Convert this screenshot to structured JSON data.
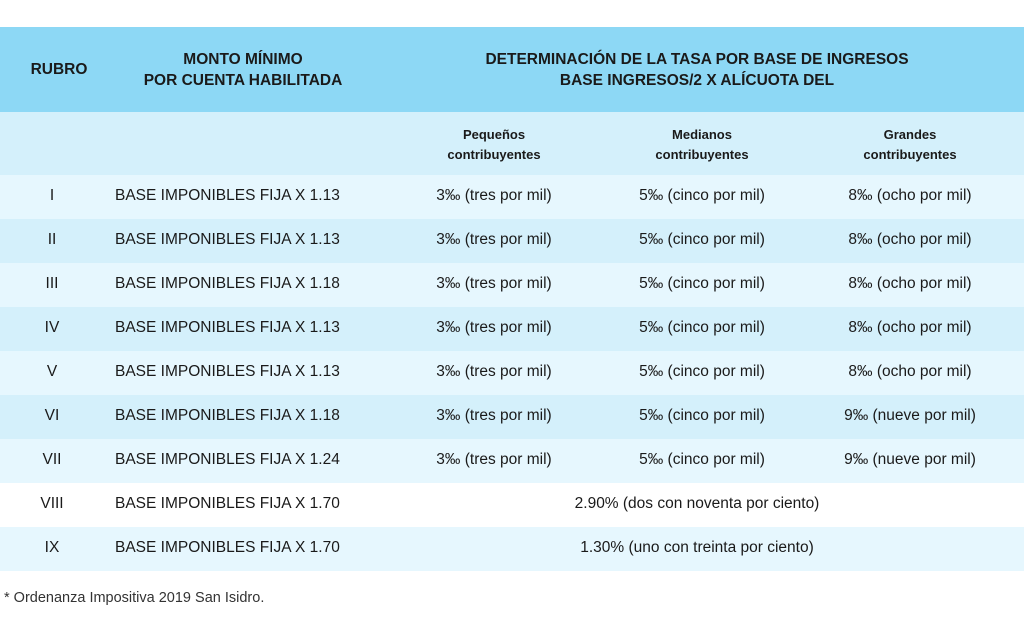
{
  "header": {
    "rubro": "RUBRO",
    "monto_line1": "MONTO MÍNIMO",
    "monto_line2": "POR CUENTA HABILITADA",
    "det_line1": "DETERMINACIÓN DE LA TASA POR BASE DE INGRESOS",
    "det_line2": "BASE INGRESOS/2 X ALÍCUOTA DEL"
  },
  "subheader": {
    "pequenos_line1": "Pequeños",
    "pequenos_line2": "contribuyentes",
    "medianos_line1": "Medianos",
    "medianos_line2": "contribuyentes",
    "grandes_line1": "Grandes",
    "grandes_line2": "contribuyentes"
  },
  "rows": [
    {
      "rubro": "I",
      "monto": "BASE IMPONIBLES FIJA X 1.13",
      "pequenos": "3‰ (tres por mil)",
      "medianos": "5‰ (cinco por mil)",
      "grandes": "8‰ (ocho por mil)"
    },
    {
      "rubro": "II",
      "monto": "BASE IMPONIBLES FIJA X 1.13",
      "pequenos": "3‰ (tres por mil)",
      "medianos": "5‰ (cinco por mil)",
      "grandes": "8‰ (ocho por mil)"
    },
    {
      "rubro": "III",
      "monto": "BASE IMPONIBLES FIJA X 1.18",
      "pequenos": "3‰ (tres por mil)",
      "medianos": "5‰ (cinco por mil)",
      "grandes": "8‰ (ocho por mil)"
    },
    {
      "rubro": "IV",
      "monto": "BASE IMPONIBLES FIJA X 1.13",
      "pequenos": "3‰ (tres por mil)",
      "medianos": "5‰ (cinco por mil)",
      "grandes": "8‰ (ocho por mil)"
    },
    {
      "rubro": "V",
      "monto": "BASE IMPONIBLES FIJA X 1.13",
      "pequenos": "3‰ (tres por mil)",
      "medianos": "5‰ (cinco por mil)",
      "grandes": "8‰ (ocho por mil)"
    },
    {
      "rubro": "VI",
      "monto": "BASE IMPONIBLES FIJA X 1.18",
      "pequenos": "3‰ (tres por mil)",
      "medianos": "5‰ (cinco por mil)",
      "grandes": "9‰ (nueve por mil)"
    },
    {
      "rubro": "VII",
      "monto": "BASE IMPONIBLES FIJA X 1.24",
      "pequenos": "3‰ (tres por mil)",
      "medianos": "5‰ (cinco por mil)",
      "grandes": "9‰ (nueve por mil)"
    },
    {
      "rubro": "VIII",
      "monto": "BASE IMPONIBLES FIJA X 1.70",
      "combined": "2.90% (dos con noventa por ciento)"
    },
    {
      "rubro": "IX",
      "monto": "BASE IMPONIBLES FIJA X 1.70",
      "combined": "1.30% (uno con treinta por ciento)"
    }
  ],
  "footnote": "* Ordenanza Impositiva 2019 San Isidro.",
  "colors": {
    "header_bg": "#8dd8f5",
    "subheader_bg": "#d4f0fb",
    "row_light": "#e6f7fe",
    "row_mid": "#d4f0fb",
    "row_white": "#ffffff"
  }
}
